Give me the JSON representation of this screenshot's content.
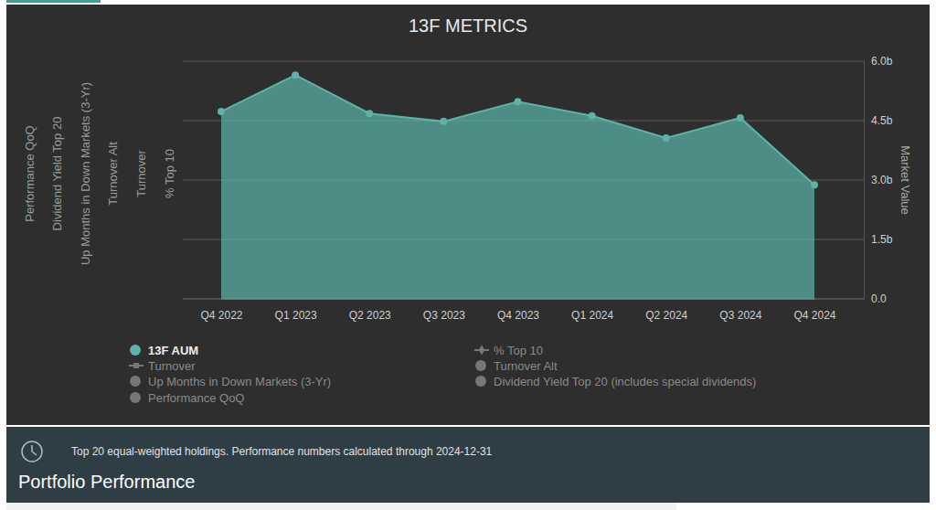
{
  "chart_data": {
    "type": "area",
    "title": "13F METRICS",
    "y_label": "Market Value",
    "left_axis_titles": [
      "Performance QoQ",
      "Dividend Yield Top 20",
      "Up Months in Down Markets (3-Yr)",
      "Turnover Alt",
      "Turnover",
      "% Top 10"
    ],
    "categories": [
      "Q4 2022",
      "Q1 2023",
      "Q2 2023",
      "Q3 2023",
      "Q4 2023",
      "Q1 2024",
      "Q2 2024",
      "Q3 2024",
      "Q4 2024"
    ],
    "series": [
      {
        "name": "13F AUM",
        "color": "#5cb3a8",
        "marker": "circle",
        "values": [
          4.73,
          5.65,
          4.68,
          4.48,
          4.98,
          4.62,
          4.06,
          4.57,
          2.88
        ]
      }
    ],
    "hidden_series": [
      {
        "name": "% Top 10",
        "type": "line",
        "marker": "diamond"
      },
      {
        "name": "Turnover",
        "type": "line",
        "marker": "square"
      },
      {
        "name": "Turnover Alt",
        "type": "bar",
        "marker": "circle"
      },
      {
        "name": "Up Months in Down Markets (3-Yr)",
        "type": "bar",
        "marker": "circle"
      },
      {
        "name": "Dividend Yield Top 20 (includes special dividends)",
        "type": "bar",
        "marker": "circle"
      },
      {
        "name": "Performance QoQ",
        "type": "bar",
        "marker": "circle"
      }
    ],
    "ylim": [
      0,
      6
    ],
    "yticks": [
      {
        "value": 0,
        "label": "0.0"
      },
      {
        "value": 1.5,
        "label": "1.5b"
      },
      {
        "value": 3,
        "label": "3.0b"
      },
      {
        "value": 4.5,
        "label": "4.5b"
      },
      {
        "value": 6,
        "label": "6.0b"
      }
    ],
    "grid": true
  },
  "footer": {
    "note": "Top 20 equal-weighted holdings. Performance numbers calculated through 2024-12-31",
    "heading": "Portfolio Performance"
  }
}
